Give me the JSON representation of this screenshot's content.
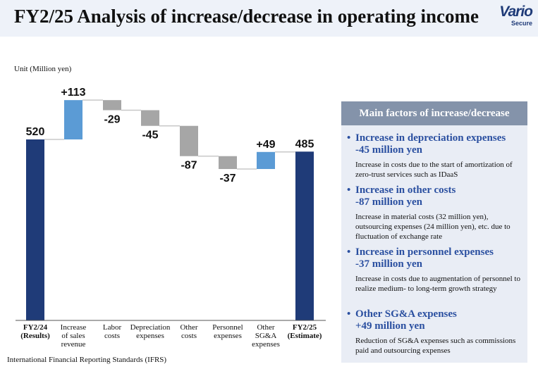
{
  "header": {
    "title": "FY2/25 Analysis of increase/decrease in operating income",
    "logo_main": "Vario",
    "logo_sub": "Secure"
  },
  "unit_label": "Unit (Million yen)",
  "footnote": "International Financial Reporting Standards (IFRS)",
  "chart_data": {
    "type": "bar",
    "subtype": "waterfall",
    "categories": [
      [
        "FY2/24",
        "(Results)"
      ],
      [
        "Increase",
        "of sales",
        "revenue"
      ],
      [
        "Labor",
        "costs"
      ],
      [
        "Depreciation",
        "expenses"
      ],
      [
        "Other",
        "costs"
      ],
      [
        "Personnel",
        "expenses"
      ],
      [
        "Other",
        "SG&A",
        "expenses"
      ],
      [
        "FY2/25",
        "(Estimate)"
      ]
    ],
    "values": [
      520,
      113,
      -29,
      -45,
      -87,
      -37,
      49,
      485
    ],
    "value_labels": [
      "520",
      "+113",
      "-29",
      "-45",
      "-87",
      "-37",
      "+49",
      "485"
    ],
    "kinds": [
      "total",
      "delta",
      "delta",
      "delta",
      "delta",
      "delta",
      "delta",
      "total"
    ],
    "colors": {
      "total": "#1f3b78",
      "increase": "#5b9bd5",
      "decrease": "#a6a6a6",
      "connector": "#c8c8c8"
    }
  },
  "factors_panel": {
    "title": "Main factors of increase/decrease",
    "items": [
      {
        "title1": "Increase in depreciation expenses",
        "title2": "-45 million yen",
        "desc": "Increase in costs due to the start of amortization of zero-trust services such as IDaaS"
      },
      {
        "title1": "Increase in other costs",
        "title2": "-87 million yen",
        "desc": "Increase in material costs (32 million yen), outsourcing expenses (24 million yen), etc. due to fluctuation of exchange rate"
      },
      {
        "title1": "Increase in personnel expenses",
        "title2": "-37 million yen",
        "desc": "Increase in costs due to augmentation of personnel to realize medium- to long-term growth strategy"
      },
      {
        "title1": "Other SG&A expenses",
        "title2": "+49 million yen",
        "desc": "Reduction of SG&A expenses such as commissions paid and outsourcing expenses"
      }
    ]
  }
}
